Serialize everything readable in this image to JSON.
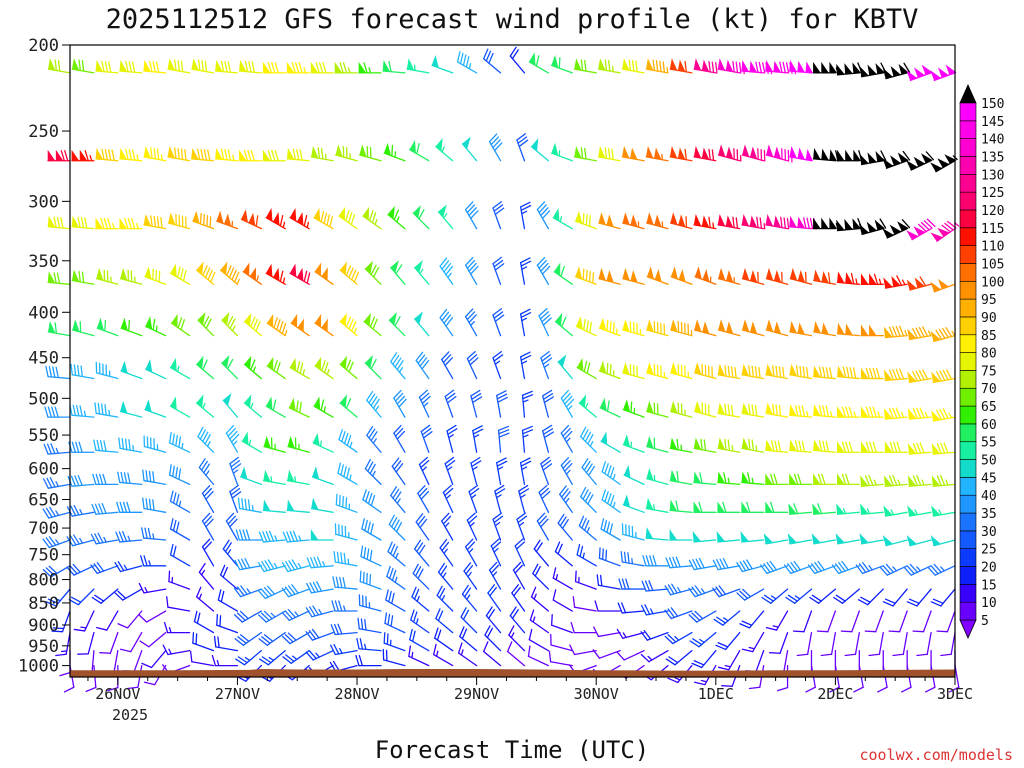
{
  "chart_data": {
    "type": "wind-barb time-height profile",
    "title": "2025112512 GFS forecast wind profile (kt) for KBTV",
    "xlabel": "Forecast Time (UTC)",
    "ylabel": "",
    "units": "kt",
    "credit": "coolwx.com/models",
    "x_ticks": [
      "26NOV",
      "27NOV",
      "28NOV",
      "29NOV",
      "30NOV",
      "1DEC",
      "2DEC",
      "3DEC"
    ],
    "x_year": "2025",
    "x_range_days": [
      -0.4,
      7.0
    ],
    "y_ticks": [
      200,
      250,
      300,
      350,
      400,
      450,
      500,
      550,
      600,
      650,
      700,
      750,
      800,
      850,
      900,
      950,
      1000
    ],
    "y_range_hpa": [
      200,
      1030
    ],
    "colorbar_ticks": [
      5,
      10,
      15,
      20,
      25,
      30,
      35,
      40,
      45,
      50,
      55,
      60,
      65,
      70,
      75,
      80,
      85,
      90,
      95,
      100,
      105,
      110,
      115,
      120,
      125,
      130,
      135,
      140,
      145,
      150
    ],
    "colorbar_colors": [
      "#7f00ff",
      "#6a00ff",
      "#3800ff",
      "#0d1fff",
      "#0b3bff",
      "#1459ff",
      "#1a74ff",
      "#1e96ff",
      "#22b4ff",
      "#14dccc",
      "#16f0a0",
      "#20f060",
      "#30f000",
      "#70f000",
      "#b0f000",
      "#e6f400",
      "#fff000",
      "#ffd000",
      "#ffb000",
      "#ff9000",
      "#ff7000",
      "#ff4000",
      "#ff1000",
      "#ff0040",
      "#ff0070",
      "#ff0090",
      "#ff00b0",
      "#ff00d0",
      "#ff00e8",
      "#ff00ff"
    ],
    "colorbar_over_color": "#000000",
    "terrain_color": "#a0522d",
    "surface_pressure": [
      [
        -0.4,
        1012
      ],
      [
        0.5,
        1012
      ],
      [
        1.1,
        1011
      ],
      [
        1.2,
        1009
      ],
      [
        1.5,
        1010
      ],
      [
        2.0,
        1010
      ],
      [
        2.4,
        1009
      ],
      [
        3.0,
        1009
      ],
      [
        3.5,
        1010
      ],
      [
        4.0,
        1012
      ],
      [
        4.6,
        1013
      ],
      [
        5.0,
        1013
      ],
      [
        5.6,
        1012
      ],
      [
        6.0,
        1012
      ],
      [
        6.5,
        1011
      ],
      [
        7.0,
        1010
      ]
    ],
    "barb_levels_hpa": [
      215,
      270,
      322,
      372,
      425,
      475,
      525,
      575,
      625,
      672,
      722,
      772,
      820,
      868,
      918,
      962,
      1000
    ],
    "barb_times_days": [
      -0.4,
      -0.2,
      0.0,
      0.2,
      0.4,
      0.6,
      0.8,
      1.0,
      1.2,
      1.4,
      1.6,
      1.8,
      2.0,
      2.2,
      2.4,
      2.6,
      2.8,
      3.0,
      3.2,
      3.4,
      3.6,
      3.8,
      4.0,
      4.2,
      4.4,
      4.6,
      4.8,
      5.0,
      5.2,
      5.4,
      5.6,
      5.8,
      6.0,
      6.2,
      6.4,
      6.6,
      6.8,
      7.0
    ],
    "speed_kt_by_level": [
      [
        72,
        70,
        78,
        80,
        82,
        78,
        78,
        80,
        80,
        82,
        85,
        80,
        75,
        65,
        60,
        55,
        50,
        45,
        30,
        20,
        60,
        60,
        70,
        75,
        80,
        95,
        110,
        130,
        140,
        145,
        145,
        150,
        155,
        160,
        160,
        158,
        150,
        150
      ],
      [
        120,
        115,
        90,
        85,
        85,
        90,
        90,
        85,
        82,
        80,
        80,
        75,
        75,
        70,
        65,
        60,
        55,
        50,
        40,
        30,
        50,
        55,
        70,
        80,
        100,
        105,
        110,
        120,
        125,
        130,
        140,
        150,
        160,
        160,
        160,
        158,
        160,
        155
      ],
      [
        80,
        80,
        85,
        85,
        88,
        90,
        92,
        105,
        110,
        115,
        115,
        90,
        80,
        75,
        65,
        60,
        55,
        40,
        30,
        25,
        40,
        55,
        80,
        100,
        105,
        105,
        110,
        115,
        120,
        125,
        130,
        140,
        155,
        160,
        160,
        160,
        140,
        135
      ],
      [
        70,
        70,
        75,
        75,
        78,
        80,
        88,
        95,
        105,
        115,
        120,
        100,
        90,
        70,
        60,
        55,
        45,
        40,
        30,
        25,
        40,
        60,
        90,
        100,
        100,
        100,
        100,
        105,
        105,
        110,
        110,
        110,
        110,
        115,
        115,
        115,
        110,
        100
      ],
      [
        60,
        60,
        60,
        62,
        65,
        68,
        70,
        75,
        80,
        95,
        100,
        100,
        85,
        70,
        60,
        50,
        40,
        35,
        30,
        25,
        40,
        60,
        80,
        85,
        85,
        90,
        95,
        100,
        100,
        100,
        100,
        100,
        100,
        100,
        100,
        95,
        95,
        95
      ],
      [
        40,
        42,
        45,
        48,
        50,
        55,
        60,
        60,
        65,
        70,
        75,
        75,
        70,
        60,
        45,
        40,
        30,
        30,
        25,
        25,
        35,
        50,
        70,
        75,
        80,
        85,
        85,
        88,
        90,
        90,
        90,
        90,
        90,
        90,
        90,
        88,
        88,
        90
      ],
      [
        40,
        45,
        45,
        48,
        50,
        52,
        55,
        50,
        55,
        60,
        70,
        65,
        60,
        45,
        40,
        35,
        30,
        30,
        30,
        25,
        30,
        45,
        55,
        60,
        65,
        70,
        75,
        80,
        80,
        80,
        82,
        85,
        85,
        85,
        85,
        85,
        85,
        85
      ],
      [
        35,
        38,
        42,
        45,
        45,
        45,
        45,
        45,
        55,
        65,
        65,
        55,
        45,
        35,
        30,
        30,
        25,
        25,
        30,
        25,
        30,
        35,
        45,
        50,
        55,
        60,
        65,
        70,
        75,
        75,
        78,
        80,
        80,
        80,
        80,
        80,
        80,
        80
      ],
      [
        35,
        38,
        40,
        40,
        40,
        38,
        35,
        35,
        50,
        55,
        55,
        50,
        45,
        35,
        30,
        25,
        25,
        25,
        25,
        25,
        30,
        35,
        40,
        45,
        50,
        55,
        60,
        60,
        65,
        65,
        68,
        70,
        72,
        72,
        75,
        75,
        75,
        75
      ],
      [
        35,
        35,
        38,
        38,
        38,
        35,
        30,
        30,
        45,
        50,
        50,
        50,
        45,
        40,
        35,
        30,
        25,
        25,
        25,
        25,
        30,
        35,
        40,
        45,
        50,
        55,
        60,
        60,
        60,
        60,
        60,
        60,
        60,
        55,
        55,
        55,
        55,
        55
      ],
      [
        35,
        35,
        35,
        35,
        35,
        30,
        28,
        30,
        40,
        45,
        45,
        48,
        45,
        40,
        38,
        30,
        25,
        25,
        25,
        25,
        30,
        30,
        35,
        40,
        45,
        50,
        50,
        50,
        50,
        50,
        50,
        50,
        50,
        50,
        50,
        50,
        50,
        48
      ],
      [
        30,
        30,
        28,
        25,
        25,
        22,
        20,
        25,
        40,
        45,
        45,
        45,
        45,
        40,
        35,
        30,
        25,
        25,
        25,
        22,
        20,
        20,
        25,
        30,
        35,
        40,
        40,
        40,
        40,
        40,
        40,
        40,
        40,
        40,
        35,
        35,
        35,
        35
      ],
      [
        25,
        22,
        20,
        18,
        15,
        15,
        15,
        20,
        35,
        40,
        40,
        40,
        40,
        38,
        35,
        30,
        25,
        25,
        25,
        20,
        18,
        15,
        15,
        20,
        30,
        30,
        35,
        35,
        30,
        30,
        25,
        25,
        20,
        20,
        20,
        18,
        18,
        18
      ],
      [
        20,
        15,
        12,
        10,
        10,
        12,
        15,
        20,
        30,
        35,
        35,
        35,
        35,
        35,
        30,
        25,
        25,
        25,
        22,
        20,
        15,
        12,
        10,
        12,
        20,
        25,
        30,
        30,
        25,
        20,
        15,
        12,
        10,
        10,
        10,
        10,
        10,
        10
      ],
      [
        15,
        12,
        10,
        10,
        10,
        15,
        18,
        20,
        28,
        30,
        30,
        30,
        30,
        30,
        28,
        25,
        22,
        22,
        20,
        18,
        15,
        12,
        10,
        10,
        15,
        20,
        25,
        25,
        20,
        15,
        12,
        10,
        10,
        10,
        10,
        10,
        10,
        10
      ],
      [
        10,
        10,
        10,
        10,
        12,
        15,
        18,
        20,
        25,
        25,
        25,
        25,
        25,
        25,
        25,
        22,
        20,
        20,
        18,
        15,
        12,
        10,
        8,
        8,
        10,
        15,
        20,
        20,
        15,
        12,
        10,
        10,
        10,
        8,
        8,
        8,
        8,
        8
      ],
      [
        8,
        8,
        8,
        8,
        10,
        10,
        12,
        15,
        20,
        20,
        20,
        20,
        20,
        20,
        18,
        15,
        15,
        15,
        12,
        10,
        10,
        8,
        8,
        8,
        10,
        12,
        15,
        15,
        12,
        10,
        8,
        8,
        8,
        8,
        8,
        8,
        8,
        8
      ]
    ],
    "direction_deg_by_level": [
      [
        280,
        280,
        275,
        275,
        275,
        280,
        280,
        275,
        275,
        270,
        270,
        270,
        270,
        270,
        275,
        280,
        290,
        300,
        310,
        320,
        300,
        290,
        280,
        280,
        280,
        280,
        280,
        280,
        280,
        275,
        275,
        275,
        270,
        265,
        260,
        255,
        250,
        250
      ],
      [
        270,
        270,
        275,
        275,
        280,
        280,
        275,
        275,
        270,
        270,
        275,
        280,
        285,
        285,
        290,
        300,
        310,
        320,
        330,
        340,
        310,
        290,
        280,
        280,
        280,
        280,
        280,
        280,
        285,
        285,
        285,
        280,
        275,
        270,
        260,
        250,
        245,
        240
      ],
      [
        275,
        275,
        270,
        270,
        280,
        285,
        290,
        290,
        295,
        300,
        300,
        300,
        305,
        305,
        310,
        315,
        320,
        330,
        340,
        350,
        330,
        300,
        290,
        285,
        285,
        285,
        285,
        280,
        280,
        280,
        280,
        275,
        270,
        265,
        255,
        245,
        240,
        235
      ],
      [
        275,
        280,
        285,
        285,
        290,
        300,
        310,
        310,
        305,
        300,
        300,
        305,
        310,
        315,
        320,
        320,
        325,
        330,
        340,
        350,
        330,
        305,
        290,
        285,
        285,
        290,
        290,
        290,
        285,
        285,
        285,
        285,
        280,
        275,
        270,
        260,
        255,
        250
      ],
      [
        280,
        285,
        290,
        290,
        295,
        305,
        315,
        315,
        310,
        305,
        305,
        305,
        310,
        310,
        315,
        320,
        325,
        330,
        340,
        350,
        335,
        310,
        295,
        290,
        285,
        285,
        285,
        285,
        285,
        285,
        285,
        280,
        280,
        275,
        270,
        265,
        260,
        255
      ],
      [
        275,
        280,
        285,
        290,
        295,
        300,
        310,
        315,
        310,
        305,
        300,
        305,
        310,
        315,
        320,
        325,
        330,
        335,
        340,
        350,
        340,
        320,
        300,
        290,
        285,
        285,
        285,
        285,
        280,
        280,
        280,
        280,
        275,
        275,
        270,
        265,
        260,
        260
      ],
      [
        270,
        275,
        280,
        285,
        290,
        300,
        310,
        320,
        310,
        300,
        295,
        300,
        310,
        320,
        330,
        335,
        340,
        345,
        350,
        355,
        345,
        330,
        310,
        295,
        290,
        285,
        285,
        285,
        280,
        280,
        280,
        275,
        275,
        270,
        270,
        265,
        265,
        260
      ],
      [
        265,
        270,
        275,
        280,
        285,
        295,
        315,
        330,
        300,
        285,
        285,
        295,
        305,
        320,
        330,
        340,
        345,
        350,
        355,
        355,
        345,
        330,
        315,
        300,
        290,
        285,
        280,
        280,
        280,
        280,
        275,
        275,
        275,
        270,
        270,
        270,
        265,
        265
      ],
      [
        260,
        265,
        270,
        275,
        280,
        295,
        320,
        340,
        290,
        280,
        280,
        290,
        300,
        315,
        325,
        335,
        340,
        345,
        350,
        350,
        340,
        330,
        320,
        305,
        295,
        285,
        280,
        275,
        275,
        275,
        270,
        270,
        270,
        270,
        265,
        265,
        265,
        265
      ],
      [
        255,
        260,
        265,
        270,
        280,
        300,
        330,
        340,
        280,
        275,
        275,
        280,
        290,
        305,
        320,
        330,
        335,
        340,
        345,
        345,
        335,
        325,
        315,
        305,
        290,
        280,
        275,
        270,
        270,
        270,
        270,
        265,
        265,
        265,
        265,
        260,
        260,
        260
      ],
      [
        250,
        255,
        260,
        265,
        275,
        300,
        330,
        330,
        270,
        265,
        265,
        270,
        285,
        300,
        315,
        325,
        330,
        335,
        340,
        340,
        330,
        320,
        310,
        300,
        285,
        275,
        270,
        265,
        265,
        265,
        260,
        260,
        260,
        260,
        260,
        255,
        255,
        255
      ],
      [
        240,
        245,
        250,
        255,
        270,
        300,
        330,
        320,
        260,
        255,
        255,
        265,
        280,
        295,
        310,
        320,
        325,
        330,
        335,
        335,
        320,
        310,
        300,
        290,
        280,
        270,
        265,
        260,
        260,
        255,
        250,
        250,
        250,
        250,
        250,
        245,
        245,
        245
      ],
      [
        220,
        225,
        230,
        240,
        260,
        290,
        320,
        310,
        250,
        245,
        250,
        260,
        275,
        290,
        305,
        315,
        320,
        325,
        330,
        330,
        315,
        300,
        290,
        280,
        270,
        265,
        255,
        250,
        250,
        240,
        230,
        230,
        230,
        230,
        225,
        220,
        220,
        220
      ],
      [
        200,
        205,
        210,
        220,
        240,
        280,
        310,
        300,
        240,
        240,
        245,
        255,
        270,
        285,
        300,
        310,
        315,
        320,
        325,
        325,
        310,
        300,
        280,
        270,
        265,
        260,
        250,
        240,
        230,
        220,
        210,
        200,
        200,
        200,
        200,
        200,
        200,
        200
      ],
      [
        190,
        195,
        200,
        210,
        230,
        270,
        300,
        290,
        235,
        235,
        240,
        250,
        265,
        280,
        295,
        305,
        310,
        315,
        320,
        320,
        305,
        290,
        270,
        260,
        255,
        250,
        240,
        230,
        220,
        210,
        200,
        190,
        190,
        190,
        190,
        190,
        190,
        190
      ],
      [
        180,
        185,
        190,
        200,
        220,
        260,
        290,
        280,
        230,
        230,
        235,
        245,
        260,
        275,
        290,
        300,
        305,
        310,
        315,
        315,
        300,
        285,
        260,
        250,
        245,
        240,
        230,
        220,
        210,
        200,
        190,
        180,
        180,
        180,
        180,
        180,
        180,
        180
      ],
      [
        170,
        175,
        180,
        190,
        210,
        250,
        280,
        270,
        225,
        225,
        230,
        240,
        255,
        270,
        285,
        295,
        300,
        305,
        310,
        310,
        295,
        280,
        250,
        240,
        235,
        230,
        220,
        210,
        200,
        190,
        180,
        170,
        170,
        170,
        170,
        170,
        170,
        170
      ]
    ]
  }
}
